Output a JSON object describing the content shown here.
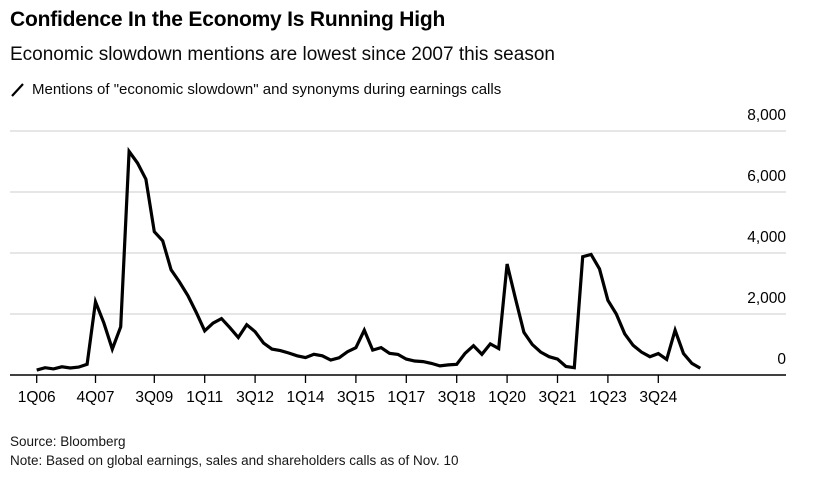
{
  "header": {
    "title": "Confidence In the Economy Is Running High",
    "subtitle": "Economic slowdown mentions are lowest since 2007 this season",
    "legend_label": "Mentions of \"economic slowdown\" and synonyms during earnings calls"
  },
  "footer": {
    "source": "Source: Bloomberg",
    "note": "Note: Based on global earnings, sales and shareholders calls as of Nov. 10"
  },
  "colors": {
    "line": "#000000",
    "grid": "#d8d8d8",
    "axis": "#000000",
    "text": "#000000"
  },
  "chart_data": {
    "type": "line",
    "title": "Confidence In the Economy Is Running High",
    "subtitle": "Economic slowdown mentions are lowest since 2007 this season",
    "series_name": "Mentions of \"economic slowdown\" and synonyms during earnings calls",
    "x": [
      "1Q06",
      "2Q06",
      "3Q06",
      "4Q06",
      "1Q07",
      "2Q07",
      "3Q07",
      "4Q07",
      "1Q08",
      "2Q08",
      "3Q08",
      "4Q08",
      "1Q09",
      "2Q09",
      "3Q09",
      "4Q09",
      "1Q10",
      "2Q10",
      "3Q10",
      "4Q10",
      "1Q11",
      "2Q11",
      "3Q11",
      "4Q11",
      "1Q12",
      "2Q12",
      "3Q12",
      "4Q12",
      "1Q13",
      "2Q13",
      "3Q13",
      "4Q13",
      "1Q14",
      "2Q14",
      "3Q14",
      "4Q14",
      "1Q15",
      "2Q15",
      "3Q15",
      "4Q15",
      "1Q16",
      "2Q16",
      "3Q16",
      "4Q16",
      "1Q17",
      "2Q17",
      "3Q17",
      "4Q17",
      "1Q18",
      "2Q18",
      "3Q18",
      "4Q18",
      "1Q19",
      "2Q19",
      "3Q19",
      "4Q19",
      "1Q20",
      "2Q20",
      "3Q20",
      "4Q20",
      "1Q21",
      "2Q21",
      "3Q21",
      "4Q21",
      "1Q22",
      "2Q22",
      "3Q22",
      "4Q22",
      "1Q23",
      "2Q23",
      "3Q23",
      "4Q23",
      "1Q24",
      "2Q24",
      "3Q24",
      "4Q24",
      "1Q25",
      "2Q25",
      "3Q25",
      "4Q25"
    ],
    "values": [
      160,
      240,
      200,
      270,
      230,
      260,
      350,
      2400,
      1700,
      850,
      1580,
      7330,
      6950,
      6420,
      4700,
      4400,
      3450,
      3050,
      2600,
      2050,
      1450,
      1700,
      1850,
      1550,
      1230,
      1650,
      1420,
      1050,
      850,
      800,
      720,
      630,
      570,
      680,
      630,
      490,
      565,
      765,
      895,
      1470,
      815,
      900,
      710,
      675,
      520,
      460,
      440,
      380,
      300,
      330,
      350,
      710,
      960,
      680,
      1020,
      870,
      3640,
      2500,
      1400,
      1000,
      750,
      600,
      520,
      280,
      240,
      3880,
      3950,
      3480,
      2450,
      2000,
      1350,
      975,
      750,
      600,
      700,
      510,
      1470,
      700,
      380,
      220
    ],
    "x_tick_labels": [
      "1Q06",
      "4Q07",
      "3Q09",
      "1Q11",
      "3Q12",
      "1Q14",
      "3Q15",
      "1Q17",
      "3Q18",
      "1Q20",
      "3Q21",
      "1Q23",
      "3Q24"
    ],
    "x_tick_indices": [
      0,
      7,
      14,
      20,
      26,
      32,
      38,
      44,
      50,
      56,
      62,
      68,
      74
    ],
    "y_ticks": [
      0,
      2000,
      4000,
      6000,
      8000
    ],
    "y_tick_labels": [
      "0",
      "2,000",
      "4,000",
      "6,000",
      "8,000"
    ],
    "ylim": [
      0,
      8000
    ],
    "grid": "horizontal",
    "legend_position": "top-left",
    "note": "Note: Based on global earnings, sales and shareholders calls as of Nov. 10",
    "source": "Source: Bloomberg"
  }
}
